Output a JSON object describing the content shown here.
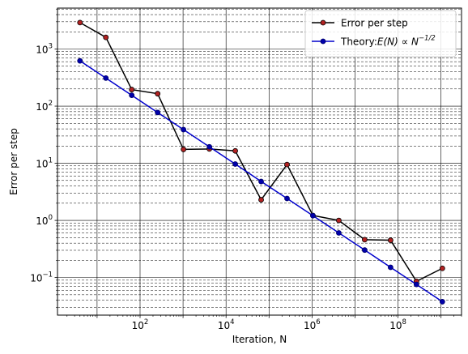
{
  "chart_data": {
    "type": "line",
    "title": "",
    "xlabel": "Iteration, N",
    "ylabel": "Error per step",
    "xscale": "log",
    "yscale": "log",
    "xlim": [
      1.2,
      3000000000
    ],
    "ylim": [
      0.022,
      5200
    ],
    "grid": "major and minor",
    "legend_position": "top-right",
    "x_ticks": [
      {
        "value": 100,
        "base": "10",
        "exp": "2"
      },
      {
        "value": 10000,
        "base": "10",
        "exp": "4"
      },
      {
        "value": 1000000,
        "base": "10",
        "exp": "6"
      },
      {
        "value": 100000000,
        "base": "10",
        "exp": "8"
      }
    ],
    "y_ticks": [
      {
        "value": 0.1,
        "base": "10",
        "exp": "−1"
      },
      {
        "value": 1,
        "base": "10",
        "exp": "0"
      },
      {
        "value": 10,
        "base": "10",
        "exp": "1"
      },
      {
        "value": 100,
        "base": "10",
        "exp": "2"
      },
      {
        "value": 1000,
        "base": "10",
        "exp": "3"
      }
    ],
    "x": [
      4,
      16,
      64,
      256,
      1024,
      4096,
      16384,
      65536,
      262144,
      1048576,
      4194304,
      16777216,
      67108864,
      268435456,
      1073741824
    ],
    "series": [
      {
        "name": "Error per step",
        "color": "#000000",
        "marker_color": "#b22222",
        "values": [
          2900,
          1600,
          195,
          165,
          17.5,
          17.8,
          16.5,
          2.3,
          9.5,
          1.22,
          1.0,
          0.46,
          0.45,
          0.086,
          0.145
        ]
      },
      {
        "name_prefix": "Theory:",
        "name_math": "E(N) ∝ N",
        "name_exp": "−1/2",
        "color": "#0000cc",
        "marker_color": "#0000aa",
        "values": [
          620,
          310,
          155,
          77.5,
          38.8,
          19.4,
          9.7,
          4.8,
          2.42,
          1.21,
          0.605,
          0.303,
          0.151,
          0.0757,
          0.0378
        ]
      }
    ]
  }
}
